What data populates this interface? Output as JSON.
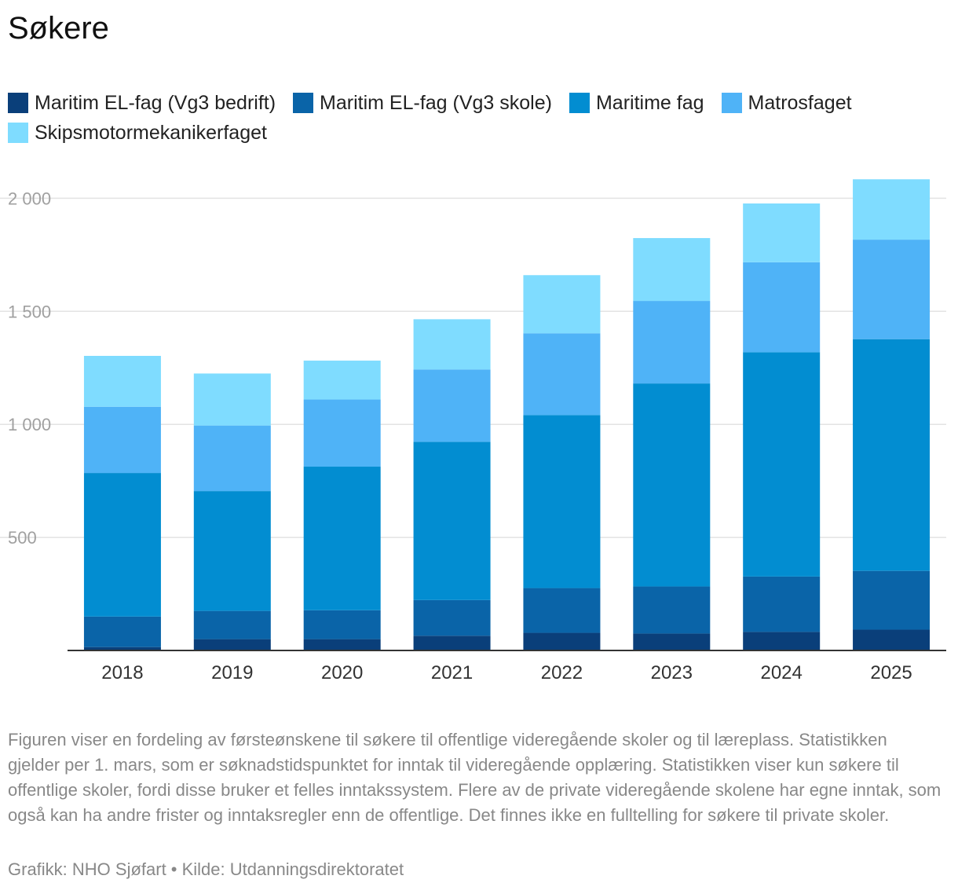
{
  "chart_data": {
    "type": "bar",
    "stacked": true,
    "title": "Søkere",
    "categories": [
      "2018",
      "2019",
      "2020",
      "2021",
      "2022",
      "2023",
      "2024",
      "2025"
    ],
    "series": [
      {
        "name": "Maritim EL-fag (Vg3 bedrift)",
        "color": "#0a3f7a",
        "values": [
          15,
          50,
          50,
          65,
          78,
          75,
          82,
          92
        ]
      },
      {
        "name": "Maritim EL-fag (Vg3 skole)",
        "color": "#0a64a8",
        "values": [
          135,
          125,
          128,
          158,
          198,
          208,
          245,
          260
        ]
      },
      {
        "name": "Maritime fag",
        "color": "#028dd1",
        "values": [
          635,
          530,
          635,
          700,
          765,
          898,
          992,
          1025
        ]
      },
      {
        "name": "Matrosfaget",
        "color": "#4fb3f7",
        "values": [
          293,
          290,
          297,
          320,
          362,
          365,
          398,
          440
        ]
      },
      {
        "name": "Skipsmotormekanikerfaget",
        "color": "#7fdcff",
        "values": [
          225,
          230,
          172,
          222,
          257,
          278,
          260,
          267
        ]
      }
    ],
    "yticks": [
      500,
      1000,
      1500,
      2000
    ],
    "ytick_labels": [
      "500",
      "1 000",
      "1 500",
      "2 000"
    ],
    "ylim": [
      0,
      2000
    ],
    "xlabel": "",
    "ylabel": "",
    "grid": true,
    "legend": "top"
  },
  "footnote": "Figuren viser en fordeling av førsteønskene til søkere til offentlige videregående skoler og til læreplass. Statistikken gjelder per 1. mars, som er søknadstidspunktet for inntak til videregående opplæring. Statistikken viser kun søkere til offentlige skoler, fordi disse bruker et felles inntakssystem. Flere av de private videregående skolene har egne inntak, som også kan ha andre frister og inntaksregler enn de offentlige. Det finnes ikke en fulltelling for søkere til private skoler.",
  "credit": "Grafikk: NHO Sjøfart • Kilde: Utdanningsdirektoratet"
}
